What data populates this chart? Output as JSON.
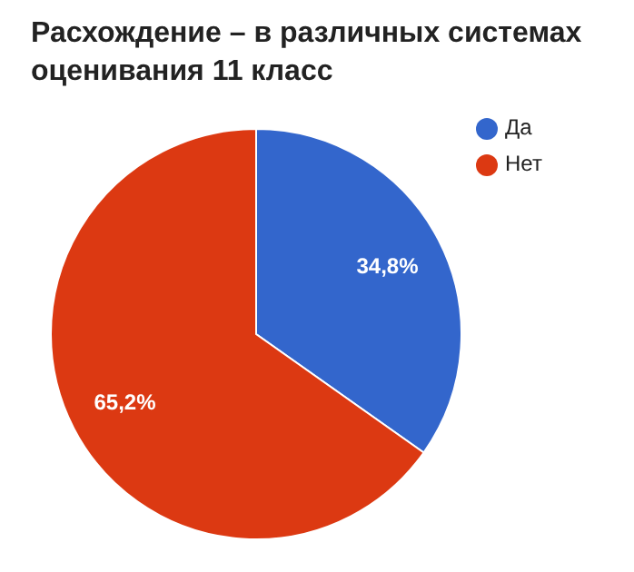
{
  "chart_data": {
    "type": "pie",
    "title": "Расхождение – в различных системах оценивания 11 класс",
    "categories": [
      "Да",
      "Нет"
    ],
    "values": [
      34.8,
      65.2
    ],
    "colors": [
      "#3366cc",
      "#dc3912"
    ],
    "value_labels": [
      "34,8%",
      "65,2%"
    ],
    "legend": "top right"
  }
}
